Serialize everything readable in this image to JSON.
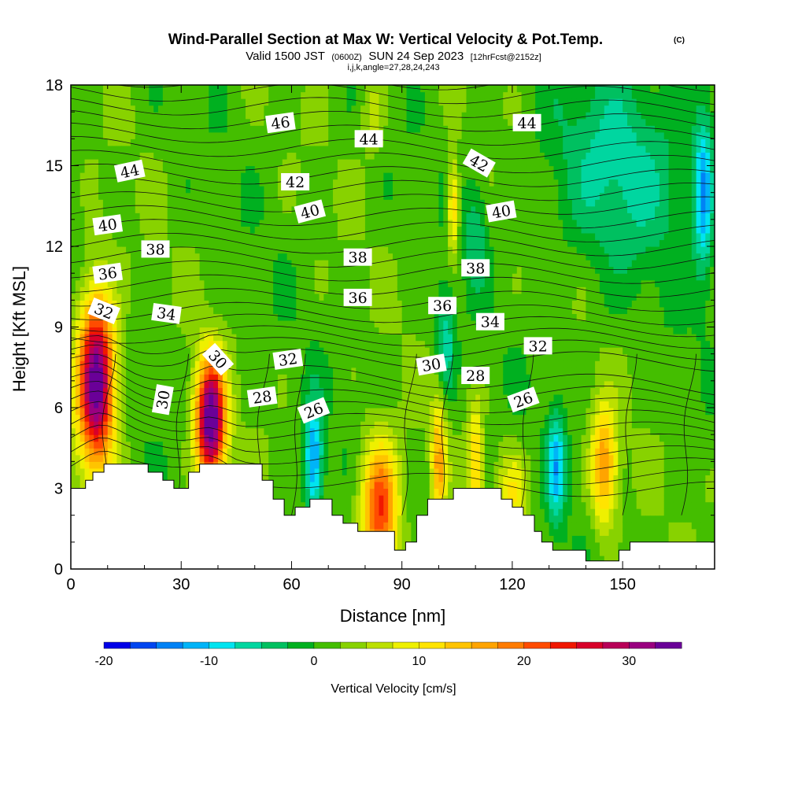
{
  "title": {
    "main": "Wind-Parallel Section at Max W: Vertical Velocity & Pot.Temp.",
    "copyright": "(C)",
    "valid_prefix": "Valid 1500 JST",
    "valid_utc": "(0600Z)",
    "valid_date": "SUN 24 Sep 2023",
    "forecast": "[12hrFcst@2152z]",
    "indices": "i,j,k,angle=27,28,24,243"
  },
  "chart_data": {
    "type": "heatmap",
    "xlabel": "Distance [nm]",
    "ylabel": "Height [Kft MSL]",
    "xlim": [
      0,
      175
    ],
    "ylim": [
      0,
      18
    ],
    "xticks": [
      "0",
      "30",
      "60",
      "90",
      "120",
      "150"
    ],
    "xtick_values": [
      0,
      30,
      60,
      90,
      120,
      150
    ],
    "yticks": [
      "0",
      "3",
      "6",
      "9",
      "12",
      "15",
      "18"
    ],
    "ytick_values": [
      0,
      3,
      6,
      9,
      12,
      15,
      18
    ],
    "colorbar": {
      "label": "Vertical Velocity [cm/s]",
      "min": -20,
      "max": 35,
      "step": 2.5,
      "tick_labels": [
        "-20",
        "-10",
        "0",
        "10",
        "20",
        "30"
      ],
      "tick_values": [
        -20,
        -10,
        0,
        10,
        20,
        30
      ],
      "colors": [
        "#0000e8",
        "#0046f0",
        "#0082f5",
        "#00b4f8",
        "#00e4f0",
        "#00d6a0",
        "#00c060",
        "#00b020",
        "#44be00",
        "#88d200",
        "#bce000",
        "#eef000",
        "#ffe400",
        "#ffc400",
        "#ffa400",
        "#ff7c00",
        "#ff4c00",
        "#f01800",
        "#d8002a",
        "#b80058",
        "#9a0080",
        "#6a0098"
      ]
    },
    "terrain_kft": [
      [
        0,
        3
      ],
      [
        4,
        3
      ],
      [
        4,
        3.3
      ],
      [
        6,
        3.3
      ],
      [
        6,
        3.6
      ],
      [
        9,
        3.6
      ],
      [
        9,
        3.9
      ],
      [
        21,
        3.9
      ],
      [
        21,
        3.6
      ],
      [
        25,
        3.6
      ],
      [
        25,
        3.3
      ],
      [
        28,
        3.3
      ],
      [
        28,
        3.0
      ],
      [
        32,
        3.0
      ],
      [
        32,
        3.6
      ],
      [
        35,
        3.6
      ],
      [
        35,
        3.9
      ],
      [
        52,
        3.9
      ],
      [
        52,
        3.3
      ],
      [
        55,
        3.3
      ],
      [
        55,
        2.6
      ],
      [
        58,
        2.6
      ],
      [
        58,
        2.0
      ],
      [
        61,
        2.0
      ],
      [
        61,
        2.3
      ],
      [
        65,
        2.3
      ],
      [
        65,
        2.6
      ],
      [
        71,
        2.6
      ],
      [
        71,
        2.0
      ],
      [
        74,
        2.0
      ],
      [
        74,
        1.7
      ],
      [
        78,
        1.7
      ],
      [
        78,
        1.4
      ],
      [
        88,
        1.4
      ],
      [
        88,
        0.7
      ],
      [
        91,
        0.7
      ],
      [
        91,
        1.0
      ],
      [
        94,
        1.0
      ],
      [
        94,
        2.0
      ],
      [
        97,
        2.0
      ],
      [
        97,
        2.6
      ],
      [
        104,
        2.6
      ],
      [
        104,
        3.0
      ],
      [
        117,
        3.0
      ],
      [
        117,
        2.6
      ],
      [
        120,
        2.6
      ],
      [
        120,
        2.3
      ],
      [
        123,
        2.3
      ],
      [
        123,
        2.0
      ],
      [
        126,
        2.0
      ],
      [
        126,
        1.4
      ],
      [
        128,
        1.4
      ],
      [
        128,
        1.0
      ],
      [
        131,
        1.0
      ],
      [
        131,
        0.7
      ],
      [
        140,
        0.7
      ],
      [
        140,
        0.3
      ],
      [
        149,
        0.3
      ],
      [
        149,
        0.7
      ],
      [
        152,
        0.7
      ],
      [
        152,
        1.0
      ],
      [
        175,
        1.0
      ]
    ],
    "w_features": [
      {
        "x": 7,
        "y": 7.0,
        "value": 34,
        "sx": 5,
        "sy": 3.2
      },
      {
        "x": 38,
        "y": 5.5,
        "value": 35,
        "sx": 4,
        "sy": 2.3
      },
      {
        "x": 84,
        "y": 2.2,
        "value": 22,
        "sx": 5,
        "sy": 2.5
      },
      {
        "x": 100,
        "y": 4.0,
        "value": 14,
        "sx": 2,
        "sy": 2.4
      },
      {
        "x": 110,
        "y": 4.0,
        "value": 12,
        "sx": 2,
        "sy": 2.0
      },
      {
        "x": 145,
        "y": 3.8,
        "value": 16,
        "sx": 3.5,
        "sy": 2.2
      },
      {
        "x": 120,
        "y": 2.8,
        "value": 8,
        "sx": 4,
        "sy": 1.6
      },
      {
        "x": 66,
        "y": 4.0,
        "value": -15,
        "sx": 2.5,
        "sy": 2.2
      },
      {
        "x": 132,
        "y": 3.8,
        "value": -12,
        "sx": 2.5,
        "sy": 2.0
      },
      {
        "x": 102,
        "y": 8.5,
        "value": -8,
        "sx": 2.5,
        "sy": 2.0
      },
      {
        "x": 110,
        "y": 12.5,
        "value": -6,
        "sx": 3,
        "sy": 2.0
      },
      {
        "x": 150,
        "y": 15,
        "value": -7,
        "sx": 20,
        "sy": 4
      },
      {
        "x": 172,
        "y": 14,
        "value": -13,
        "sx": 2.5,
        "sy": 3
      },
      {
        "x": 104,
        "y": 13.5,
        "value": 12,
        "sx": 1.5,
        "sy": 1.8
      },
      {
        "x": 82,
        "y": 17,
        "value": 5,
        "sx": 3,
        "sy": 1.5
      }
    ],
    "theta_labels": [
      {
        "text": "46",
        "x": 57,
        "y": 16.6,
        "angle": -8
      },
      {
        "text": "44",
        "x": 81,
        "y": 16.0,
        "angle": 0
      },
      {
        "text": "44",
        "x": 124,
        "y": 16.6,
        "angle": 0
      },
      {
        "text": "44",
        "x": 16,
        "y": 14.8,
        "angle": -12
      },
      {
        "text": "42",
        "x": 61,
        "y": 14.4,
        "angle": 0
      },
      {
        "text": "42",
        "x": 111,
        "y": 15.1,
        "angle": 30
      },
      {
        "text": "40",
        "x": 10,
        "y": 12.8,
        "angle": -8
      },
      {
        "text": "40",
        "x": 65,
        "y": 13.3,
        "angle": -15
      },
      {
        "text": "40",
        "x": 117,
        "y": 13.3,
        "angle": -10
      },
      {
        "text": "38",
        "x": 23,
        "y": 11.9,
        "angle": 0
      },
      {
        "text": "38",
        "x": 78,
        "y": 11.6,
        "angle": 0
      },
      {
        "text": "38",
        "x": 110,
        "y": 11.2,
        "angle": 0
      },
      {
        "text": "36",
        "x": 10,
        "y": 11.0,
        "angle": -8
      },
      {
        "text": "36",
        "x": 78,
        "y": 10.1,
        "angle": 0
      },
      {
        "text": "36",
        "x": 101,
        "y": 9.8,
        "angle": 0
      },
      {
        "text": "34",
        "x": 26,
        "y": 9.5,
        "angle": 8
      },
      {
        "text": "34",
        "x": 114,
        "y": 9.2,
        "angle": 0
      },
      {
        "text": "32",
        "x": 9,
        "y": 9.6,
        "angle": 22
      },
      {
        "text": "32",
        "x": 59,
        "y": 7.8,
        "angle": -8
      },
      {
        "text": "32",
        "x": 127,
        "y": 8.3,
        "angle": 0
      },
      {
        "text": "30",
        "x": 40,
        "y": 7.8,
        "angle": 48
      },
      {
        "text": "30",
        "x": 25,
        "y": 6.3,
        "angle": -80
      },
      {
        "text": "30",
        "x": 98,
        "y": 7.6,
        "angle": -10
      },
      {
        "text": "28",
        "x": 52,
        "y": 6.4,
        "angle": -8
      },
      {
        "text": "28",
        "x": 110,
        "y": 7.2,
        "angle": 0
      },
      {
        "text": "26",
        "x": 66,
        "y": 5.9,
        "angle": -22
      },
      {
        "text": "26",
        "x": 123,
        "y": 6.3,
        "angle": -20
      }
    ]
  }
}
